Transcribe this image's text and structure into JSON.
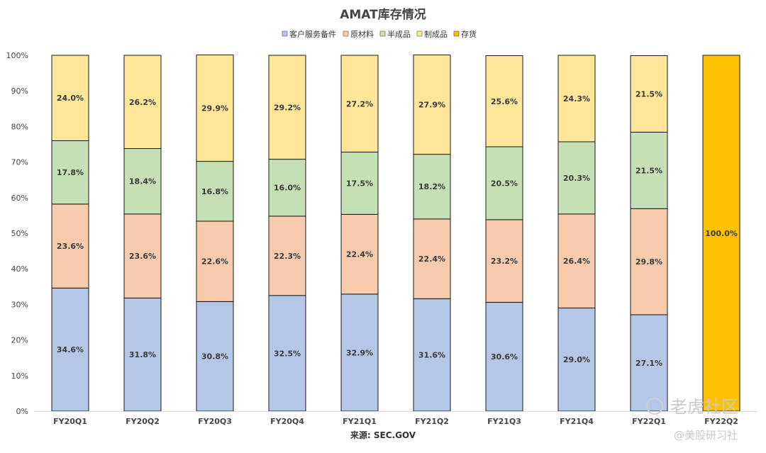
{
  "chart_data": {
    "type": "bar",
    "stacked": true,
    "percent": true,
    "title": "AMAT库存情况",
    "categories": [
      "FY20Q1",
      "FY20Q2",
      "FY20Q3",
      "FY20Q4",
      "FY21Q1",
      "FY21Q2",
      "FY21Q3",
      "FY21Q4",
      "FY22Q1",
      "FY22Q2"
    ],
    "series": [
      {
        "name": "客户服务备件",
        "color": "#b4c7e7",
        "values": [
          34.6,
          31.8,
          30.8,
          32.5,
          32.9,
          31.6,
          30.6,
          29.0,
          27.1,
          0
        ]
      },
      {
        "name": "原材料",
        "color": "#f8cbad",
        "values": [
          23.6,
          23.6,
          22.6,
          22.3,
          22.4,
          22.4,
          23.2,
          26.4,
          29.8,
          0
        ]
      },
      {
        "name": "半成品",
        "color": "#c5e0b4",
        "values": [
          17.8,
          18.4,
          16.8,
          16.0,
          17.5,
          18.2,
          20.5,
          20.3,
          21.5,
          0
        ]
      },
      {
        "name": "制成品",
        "color": "#ffe699",
        "values": [
          24.0,
          26.2,
          29.9,
          29.2,
          27.2,
          27.9,
          25.6,
          24.3,
          21.5,
          0
        ]
      },
      {
        "name": "存货",
        "color": "#ffc000",
        "values": [
          0,
          0,
          0,
          0,
          0,
          0,
          0,
          0,
          0,
          100.0
        ]
      }
    ],
    "ylim": [
      0,
      100
    ],
    "yticks": [
      "0%",
      "10%",
      "20%",
      "30%",
      "40%",
      "50%",
      "60%",
      "70%",
      "80%",
      "90%",
      "100%"
    ],
    "legend_position": "top",
    "grid": false
  },
  "source_label": "来源:  SEC.GOV",
  "watermark": {
    "line1": "老虎社区",
    "line2": "@美股研习社"
  }
}
